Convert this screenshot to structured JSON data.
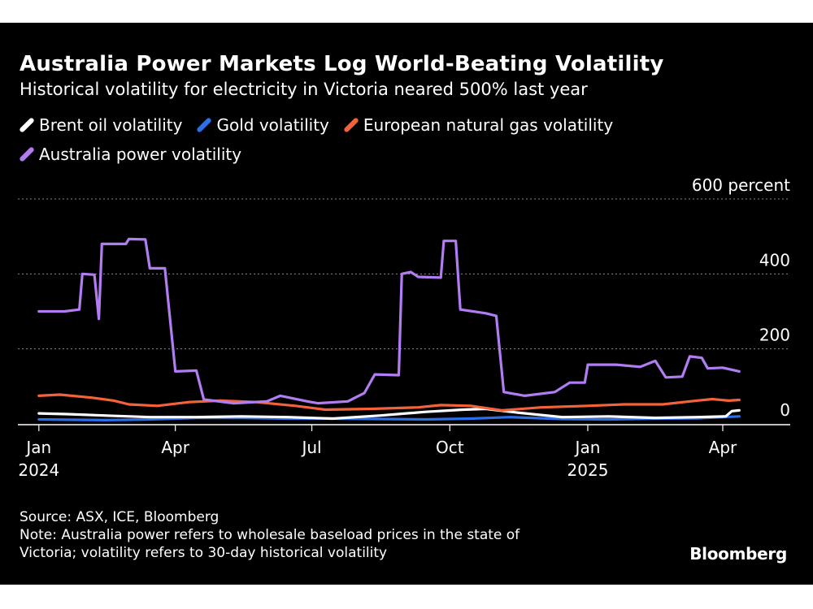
{
  "chart_data": {
    "type": "line",
    "title": "Australia Power Markets Log World-Beating Volatility",
    "subtitle": "Historical volatility for electricity in Victoria neared 500% last year",
    "ylim": [
      0,
      600
    ],
    "y_ticks": [
      {
        "value": 0,
        "label": "0"
      },
      {
        "value": 200,
        "label": "200"
      },
      {
        "value": 400,
        "label": "400"
      },
      {
        "value": 600,
        "label": "600 percent"
      }
    ],
    "x_ticks": [
      {
        "date": "2024-01-01",
        "label": "Jan",
        "sublabel": "2024"
      },
      {
        "date": "2024-04-01",
        "label": "Apr",
        "sublabel": ""
      },
      {
        "date": "2024-07-01",
        "label": "Jul",
        "sublabel": ""
      },
      {
        "date": "2024-10-01",
        "label": "Oct",
        "sublabel": ""
      },
      {
        "date": "2025-01-01",
        "label": "Jan",
        "sublabel": "2025"
      },
      {
        "date": "2025-04-01",
        "label": "Apr",
        "sublabel": ""
      }
    ],
    "xlim": [
      "2023-12-18",
      "2025-05-16"
    ],
    "grid": true,
    "legend_position": "top-left",
    "series": [
      {
        "name": "Brent oil volatility",
        "color": "#ffffff",
        "points": [
          [
            "2024-01-01",
            28
          ],
          [
            "2024-01-20",
            26
          ],
          [
            "2024-02-15",
            22
          ],
          [
            "2024-03-15",
            18
          ],
          [
            "2024-04-15",
            18
          ],
          [
            "2024-05-15",
            20
          ],
          [
            "2024-06-15",
            18
          ],
          [
            "2024-07-15",
            14
          ],
          [
            "2024-08-15",
            22
          ],
          [
            "2024-09-15",
            32
          ],
          [
            "2024-10-10",
            38
          ],
          [
            "2024-10-25",
            40
          ],
          [
            "2024-11-15",
            30
          ],
          [
            "2024-12-15",
            18
          ],
          [
            "2025-01-15",
            20
          ],
          [
            "2025-02-15",
            16
          ],
          [
            "2025-03-15",
            18
          ],
          [
            "2025-04-03",
            20
          ],
          [
            "2025-04-07",
            34
          ],
          [
            "2025-04-12",
            36
          ]
        ]
      },
      {
        "name": "Gold volatility",
        "color": "#2d6fe8",
        "points": [
          [
            "2024-01-01",
            12
          ],
          [
            "2024-02-15",
            10
          ],
          [
            "2024-03-15",
            12
          ],
          [
            "2024-04-15",
            16
          ],
          [
            "2024-05-15",
            16
          ],
          [
            "2024-06-15",
            14
          ],
          [
            "2024-07-15",
            14
          ],
          [
            "2024-08-15",
            13
          ],
          [
            "2024-09-15",
            12
          ],
          [
            "2024-10-15",
            14
          ],
          [
            "2024-11-10",
            18
          ],
          [
            "2024-12-15",
            13
          ],
          [
            "2025-01-15",
            12
          ],
          [
            "2025-02-15",
            14
          ],
          [
            "2025-03-15",
            15
          ],
          [
            "2025-04-12",
            20
          ]
        ]
      },
      {
        "name": "European natural gas volatility",
        "color": "#f4623a",
        "points": [
          [
            "2024-01-01",
            75
          ],
          [
            "2024-01-15",
            78
          ],
          [
            "2024-02-05",
            70
          ],
          [
            "2024-02-20",
            62
          ],
          [
            "2024-03-01",
            52
          ],
          [
            "2024-03-20",
            48
          ],
          [
            "2024-04-10",
            58
          ],
          [
            "2024-05-01",
            62
          ],
          [
            "2024-05-25",
            58
          ],
          [
            "2024-06-20",
            48
          ],
          [
            "2024-07-10",
            38
          ],
          [
            "2024-08-10",
            40
          ],
          [
            "2024-09-10",
            44
          ],
          [
            "2024-09-25",
            50
          ],
          [
            "2024-10-15",
            48
          ],
          [
            "2024-11-05",
            36
          ],
          [
            "2024-12-01",
            44
          ],
          [
            "2025-01-01",
            48
          ],
          [
            "2025-01-25",
            52
          ],
          [
            "2025-02-20",
            52
          ],
          [
            "2025-03-10",
            60
          ],
          [
            "2025-03-25",
            66
          ],
          [
            "2025-04-05",
            62
          ],
          [
            "2025-04-12",
            64
          ]
        ]
      },
      {
        "name": "Australia power volatility",
        "color": "#b27cf2",
        "points": [
          [
            "2024-01-01",
            300
          ],
          [
            "2024-01-18",
            300
          ],
          [
            "2024-01-28",
            305
          ],
          [
            "2024-01-30",
            400
          ],
          [
            "2024-02-07",
            398
          ],
          [
            "2024-02-10",
            280
          ],
          [
            "2024-02-12",
            480
          ],
          [
            "2024-02-28",
            480
          ],
          [
            "2024-03-01",
            493
          ],
          [
            "2024-03-12",
            492
          ],
          [
            "2024-03-15",
            415
          ],
          [
            "2024-03-25",
            415
          ],
          [
            "2024-04-01",
            140
          ],
          [
            "2024-04-15",
            142
          ],
          [
            "2024-04-20",
            65
          ],
          [
            "2024-05-10",
            55
          ],
          [
            "2024-06-01",
            60
          ],
          [
            "2024-06-10",
            75
          ],
          [
            "2024-06-28",
            60
          ],
          [
            "2024-07-05",
            55
          ],
          [
            "2024-07-25",
            60
          ],
          [
            "2024-08-05",
            82
          ],
          [
            "2024-08-12",
            132
          ],
          [
            "2024-08-28",
            130
          ],
          [
            "2024-08-30",
            400
          ],
          [
            "2024-09-05",
            405
          ],
          [
            "2024-09-10",
            392
          ],
          [
            "2024-09-25",
            390
          ],
          [
            "2024-09-27",
            488
          ],
          [
            "2024-10-05",
            488
          ],
          [
            "2024-10-08",
            305
          ],
          [
            "2024-10-25",
            295
          ],
          [
            "2024-11-01",
            288
          ],
          [
            "2024-11-06",
            85
          ],
          [
            "2024-11-20",
            75
          ],
          [
            "2024-12-10",
            85
          ],
          [
            "2024-12-20",
            110
          ],
          [
            "2024-12-30",
            110
          ],
          [
            "2025-01-01",
            158
          ],
          [
            "2025-01-20",
            158
          ],
          [
            "2025-02-05",
            152
          ],
          [
            "2025-02-15",
            168
          ],
          [
            "2025-02-22",
            124
          ],
          [
            "2025-03-05",
            126
          ],
          [
            "2025-03-10",
            180
          ],
          [
            "2025-03-18",
            176
          ],
          [
            "2025-03-22",
            148
          ],
          [
            "2025-04-01",
            150
          ],
          [
            "2025-04-12",
            140
          ]
        ]
      }
    ]
  },
  "footer": {
    "source": "Source: ASX, ICE, Bloomberg",
    "note_line1": "Note: Australia power refers to wholesale baseload prices in the state of",
    "note_line2": "Victoria; volatility refers to 30-day historical volatility",
    "brand": "Bloomberg"
  }
}
